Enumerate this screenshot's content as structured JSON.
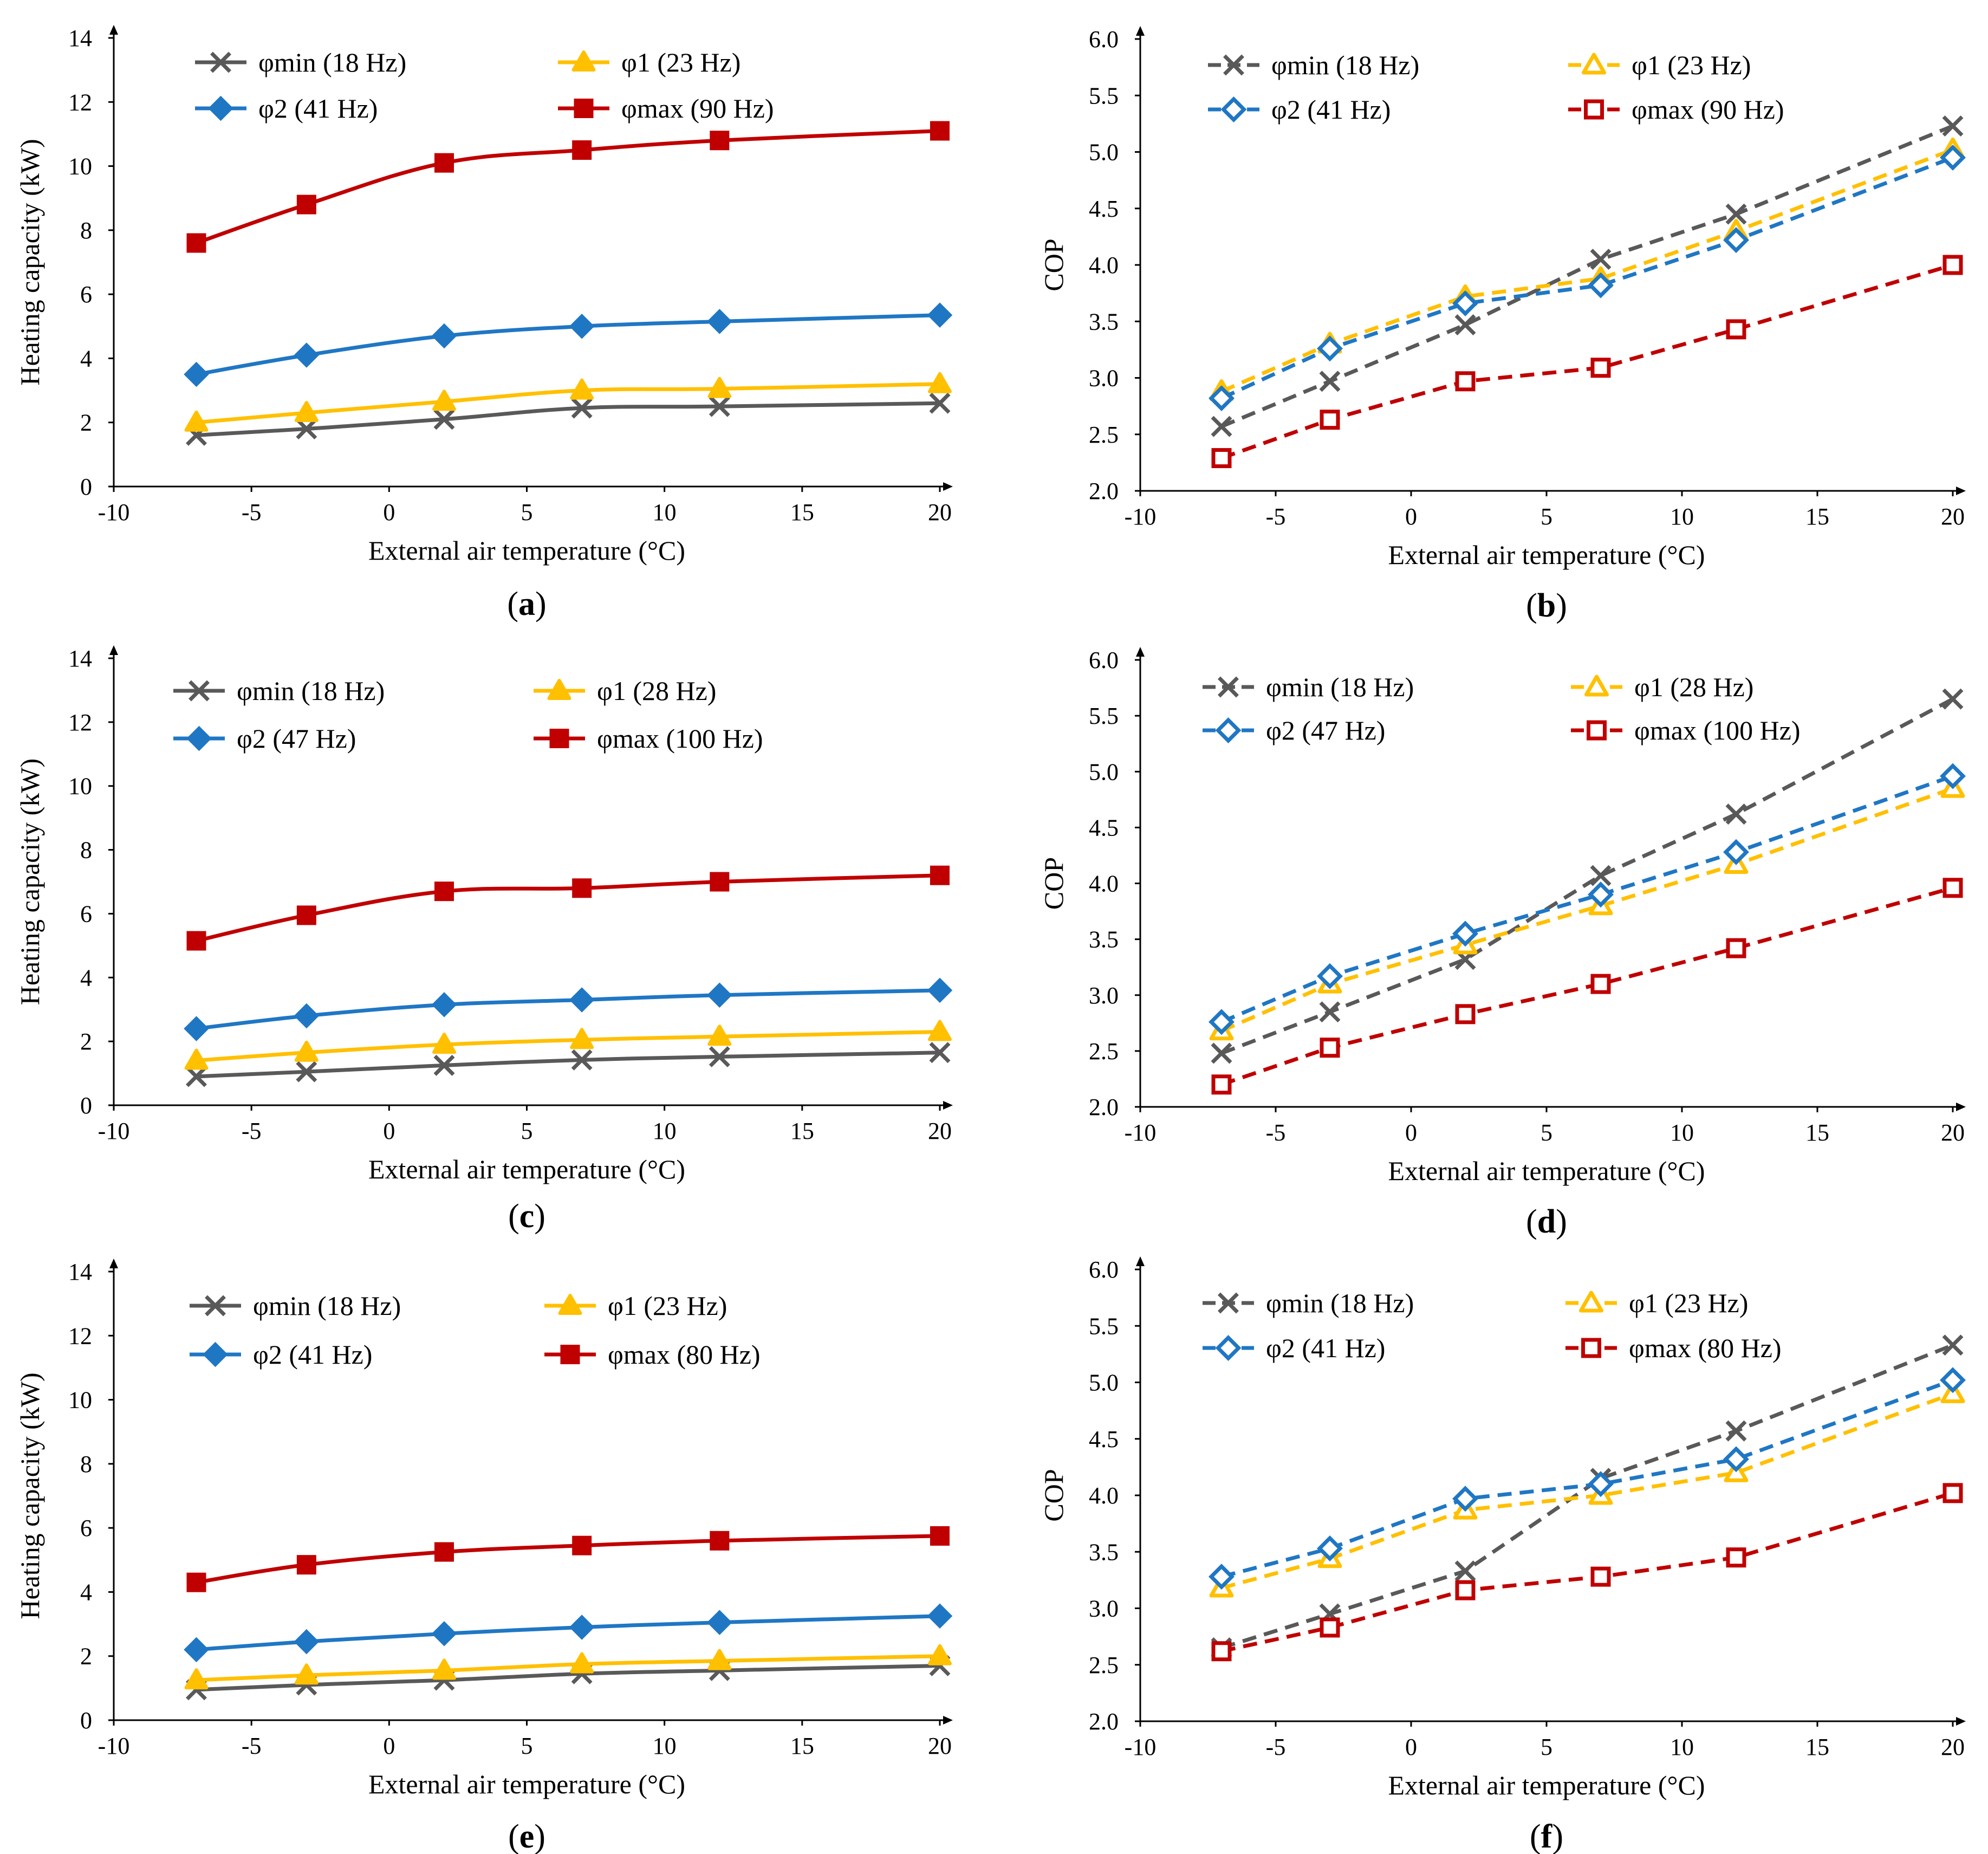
{
  "colors": {
    "phi_min": "#595959",
    "phi_1": "#ffc000",
    "phi_2": "#1f77c4",
    "phi_max": "#c00000"
  },
  "chart_data": [
    {
      "panel": "a",
      "type": "line",
      "line_style": "solid",
      "marker_fill": "filled",
      "xlabel": "External air temperature (°C)",
      "ylabel": "Heating capacity (kW)",
      "xlim": [
        -10,
        20
      ],
      "ylim": [
        0,
        14
      ],
      "xticks": [
        "-10",
        "-5",
        "0",
        "5",
        "10",
        "15",
        "20"
      ],
      "yticks": [
        "0",
        "2",
        "4",
        "6",
        "8",
        "10",
        "12",
        "14"
      ],
      "x": [
        -7,
        -3,
        2,
        7,
        12,
        20
      ],
      "series": [
        {
          "key": "phi_min",
          "name": "φmin (18 Hz)",
          "marker": "x",
          "values": [
            1.6,
            1.8,
            2.1,
            2.45,
            2.5,
            2.6
          ]
        },
        {
          "key": "phi_1",
          "name": "φ1 (23 Hz)",
          "marker": "triangle",
          "values": [
            2.0,
            2.3,
            2.65,
            3.0,
            3.05,
            3.2
          ]
        },
        {
          "key": "phi_2",
          "name": "φ2 (41 Hz)",
          "marker": "diamond",
          "values": [
            3.5,
            4.1,
            4.7,
            5.0,
            5.15,
            5.35
          ]
        },
        {
          "key": "phi_max",
          "name": "φmax (90 Hz)",
          "marker": "square",
          "values": [
            7.6,
            8.8,
            10.1,
            10.5,
            10.8,
            11.1
          ]
        }
      ]
    },
    {
      "panel": "b",
      "type": "line",
      "line_style": "dashed",
      "marker_fill": "hollow",
      "xlabel": "External air temperature (°C)",
      "ylabel": "COP",
      "xlim": [
        -10,
        20
      ],
      "ylim": [
        2.0,
        6.0
      ],
      "xticks": [
        "-10",
        "-5",
        "0",
        "5",
        "10",
        "15",
        "20"
      ],
      "yticks": [
        "2.0",
        "2.5",
        "3.0",
        "3.5",
        "4.0",
        "4.5",
        "5.0",
        "5.5",
        "6.0"
      ],
      "x": [
        -7,
        -3,
        2,
        7,
        12,
        20
      ],
      "series": [
        {
          "key": "phi_min",
          "name": "φmin (18 Hz)",
          "marker": "x",
          "values": [
            2.57,
            2.97,
            3.47,
            4.05,
            4.45,
            5.23
          ]
        },
        {
          "key": "phi_1",
          "name": "φ1 (23 Hz)",
          "marker": "triangle",
          "values": [
            2.88,
            3.3,
            3.72,
            3.88,
            4.3,
            5.02
          ]
        },
        {
          "key": "phi_2",
          "name": "φ2 (41 Hz)",
          "marker": "diamond",
          "values": [
            2.82,
            3.26,
            3.66,
            3.82,
            4.22,
            4.95
          ]
        },
        {
          "key": "phi_max",
          "name": "φmax (90 Hz)",
          "marker": "square",
          "values": [
            2.29,
            2.63,
            2.97,
            3.09,
            3.43,
            4.0
          ]
        }
      ]
    },
    {
      "panel": "c",
      "type": "line",
      "line_style": "solid",
      "marker_fill": "filled",
      "xlabel": "External air temperature (°C)",
      "ylabel": "Heating capacity (kW)",
      "xlim": [
        -10,
        20
      ],
      "ylim": [
        0,
        14
      ],
      "xticks": [
        "-10",
        "-5",
        "0",
        "5",
        "10",
        "15",
        "20"
      ],
      "yticks": [
        "0",
        "2",
        "4",
        "6",
        "8",
        "10",
        "12",
        "14"
      ],
      "x": [
        -7,
        -3,
        2,
        7,
        12,
        20
      ],
      "series": [
        {
          "key": "phi_min",
          "name": "φmin (18 Hz)",
          "marker": "x",
          "values": [
            0.9,
            1.05,
            1.25,
            1.42,
            1.52,
            1.65
          ]
        },
        {
          "key": "phi_1",
          "name": "φ1 (28 Hz)",
          "marker": "triangle",
          "values": [
            1.4,
            1.65,
            1.9,
            2.05,
            2.15,
            2.3
          ]
        },
        {
          "key": "phi_2",
          "name": "φ2 (47 Hz)",
          "marker": "diamond",
          "values": [
            2.4,
            2.8,
            3.15,
            3.3,
            3.45,
            3.6
          ]
        },
        {
          "key": "phi_max",
          "name": "φmax (100 Hz)",
          "marker": "square",
          "values": [
            5.15,
            5.95,
            6.7,
            6.8,
            7.0,
            7.2
          ]
        }
      ]
    },
    {
      "panel": "d",
      "type": "line",
      "line_style": "dashed",
      "marker_fill": "hollow",
      "xlabel": "External air temperature (°C)",
      "ylabel": "COP",
      "xlim": [
        -10,
        20
      ],
      "ylim": [
        2.0,
        6.0
      ],
      "xticks": [
        "-10",
        "-5",
        "0",
        "5",
        "10",
        "15",
        "20"
      ],
      "yticks": [
        "2.0",
        "2.5",
        "3.0",
        "3.5",
        "4.0",
        "4.5",
        "5.0",
        "5.5",
        "6.0"
      ],
      "x": [
        -7,
        -3,
        2,
        7,
        12,
        20
      ],
      "series": [
        {
          "key": "phi_min",
          "name": "φmin (18 Hz)",
          "marker": "x",
          "values": [
            2.48,
            2.85,
            3.32,
            4.07,
            4.62,
            5.65
          ]
        },
        {
          "key": "phi_1",
          "name": "φ1 (28 Hz)",
          "marker": "triangle",
          "values": [
            2.68,
            3.1,
            3.45,
            3.8,
            4.17,
            4.85
          ]
        },
        {
          "key": "phi_2",
          "name": "φ2 (47 Hz)",
          "marker": "diamond",
          "values": [
            2.76,
            3.17,
            3.55,
            3.9,
            4.28,
            4.96
          ]
        },
        {
          "key": "phi_max",
          "name": "φmax (100 Hz)",
          "marker": "square",
          "values": [
            2.2,
            2.53,
            2.83,
            3.1,
            3.42,
            3.96
          ]
        }
      ]
    },
    {
      "panel": "e",
      "type": "line",
      "line_style": "solid",
      "marker_fill": "filled",
      "xlabel": "External air temperature (°C)",
      "ylabel": "Heating capacity (kW)",
      "xlim": [
        -10,
        20
      ],
      "ylim": [
        0,
        14
      ],
      "xticks": [
        "-10",
        "-5",
        "0",
        "5",
        "10",
        "15",
        "20"
      ],
      "yticks": [
        "0",
        "2",
        "4",
        "6",
        "8",
        "10",
        "12",
        "14"
      ],
      "x": [
        -7,
        -3,
        2,
        7,
        12,
        20
      ],
      "series": [
        {
          "key": "phi_min",
          "name": "φmin (18 Hz)",
          "marker": "x",
          "values": [
            0.95,
            1.1,
            1.25,
            1.45,
            1.55,
            1.7
          ]
        },
        {
          "key": "phi_1",
          "name": "φ1 (23 Hz)",
          "marker": "triangle",
          "values": [
            1.25,
            1.4,
            1.55,
            1.75,
            1.85,
            2.0
          ]
        },
        {
          "key": "phi_2",
          "name": "φ2 (41 Hz)",
          "marker": "diamond",
          "values": [
            2.2,
            2.45,
            2.7,
            2.9,
            3.05,
            3.25
          ]
        },
        {
          "key": "phi_max",
          "name": "φmax (80 Hz)",
          "marker": "square",
          "values": [
            4.3,
            4.85,
            5.25,
            5.45,
            5.6,
            5.75
          ]
        }
      ]
    },
    {
      "panel": "f",
      "type": "line",
      "line_style": "dashed",
      "marker_fill": "hollow",
      "xlabel": "External air temperature (°C)",
      "ylabel": "COP",
      "xlim": [
        -10,
        20
      ],
      "ylim": [
        2.0,
        6.0
      ],
      "xticks": [
        "-10",
        "-5",
        "0",
        "5",
        "10",
        "15",
        "20"
      ],
      "yticks": [
        "2.0",
        "2.5",
        "3.0",
        "3.5",
        "4.0",
        "4.5",
        "5.0",
        "5.5",
        "6.0"
      ],
      "x": [
        -7,
        -3,
        2,
        7,
        12,
        20
      ],
      "series": [
        {
          "key": "phi_min",
          "name": "φmin (18 Hz)",
          "marker": "x",
          "values": [
            2.65,
            2.95,
            3.33,
            4.15,
            4.57,
            5.33
          ]
        },
        {
          "key": "phi_1",
          "name": "φ1 (23 Hz)",
          "marker": "triangle",
          "values": [
            3.18,
            3.44,
            3.87,
            4.0,
            4.2,
            4.9
          ]
        },
        {
          "key": "phi_2",
          "name": "φ2 (41 Hz)",
          "marker": "diamond",
          "values": [
            3.28,
            3.53,
            3.97,
            4.1,
            4.32,
            5.02
          ]
        },
        {
          "key": "phi_max",
          "name": "φmax (80 Hz)",
          "marker": "square",
          "values": [
            2.62,
            2.83,
            3.16,
            3.28,
            3.45,
            4.02
          ]
        }
      ]
    }
  ]
}
